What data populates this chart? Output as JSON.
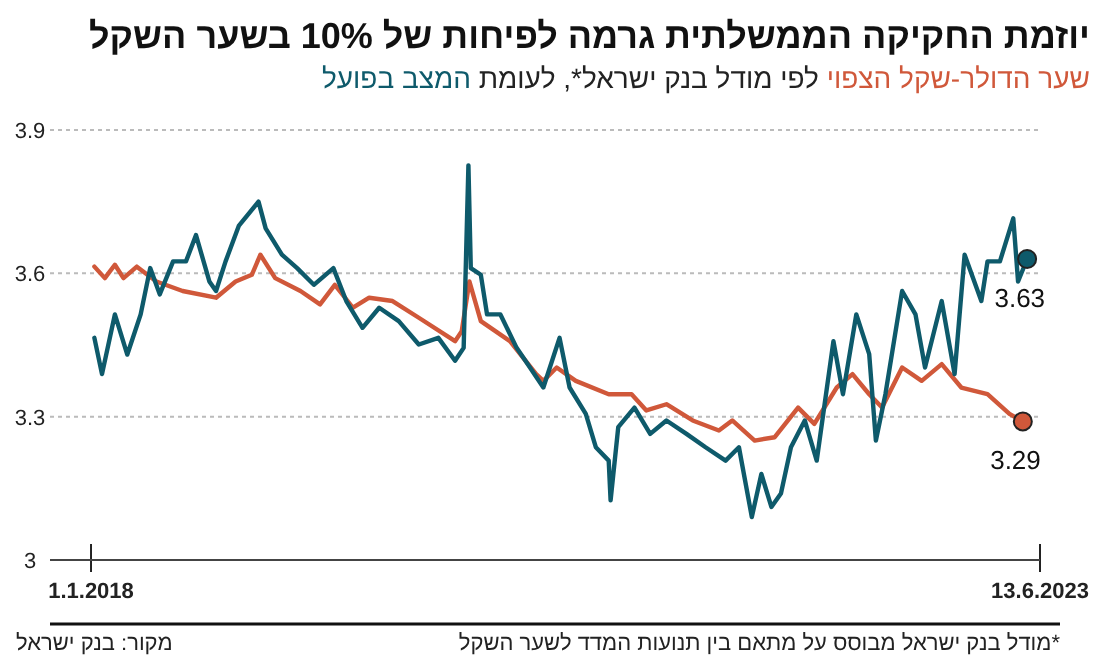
{
  "chart_data": {
    "type": "line",
    "title": "יוזמת החקיקה הממשלתית גרמה לפיחות של 10% בשער השקל",
    "subtitle": "לפי מודל בנק ישראל*, לעומת",
    "xlim": [
      "2017-10-07",
      "2023-06-13"
    ],
    "xticks": [
      {
        "value": "2018-01-01",
        "label": "1.1.2018"
      },
      {
        "value": "2023-06-13",
        "label": "13.6.2023"
      }
    ],
    "ylim": [
      3,
      3.9
    ],
    "yticks": [
      3,
      3.3,
      3.6,
      3.9
    ],
    "grid": "y",
    "line_style": "solid",
    "series": [
      {
        "name": "שער הדולר-שקל הצפוי",
        "color": "#d0583a",
        "x": [
          "2018-01-08",
          "2018-01-30",
          "2018-02-20",
          "2018-03-10",
          "2018-04-07",
          "2018-05-18",
          "2018-07-12",
          "2018-09-20",
          "2018-10-31",
          "2018-12-04",
          "2018-12-22",
          "2019-01-22",
          "2019-03-16",
          "2019-04-26",
          "2019-05-27",
          "2019-07-04",
          "2019-08-07",
          "2019-09-25",
          "2019-11-19",
          "2020-02-03",
          "2020-02-17",
          "2020-03-04",
          "2020-03-28",
          "2020-05-28",
          "2020-07-22",
          "2020-08-06",
          "2020-09-03",
          "2020-10-13",
          "2020-12-21",
          "2021-02-07",
          "2021-03-10",
          "2021-04-21",
          "2021-06-15",
          "2021-08-09",
          "2021-09-06",
          "2021-10-23",
          "2021-12-04",
          "2022-01-22",
          "2022-02-25",
          "2022-04-13",
          "2022-05-16",
          "2022-06-20",
          "2022-07-17",
          "2022-08-28",
          "2022-10-08",
          "2022-11-19",
          "2022-12-30",
          "2023-02-23",
          "2023-04-10",
          "2023-05-08"
        ],
        "values": [
          3.614,
          3.59,
          3.618,
          3.59,
          3.614,
          3.583,
          3.563,
          3.549,
          3.583,
          3.597,
          3.639,
          3.59,
          3.563,
          3.535,
          3.576,
          3.528,
          3.549,
          3.542,
          3.507,
          3.458,
          3.479,
          3.583,
          3.5,
          3.458,
          3.389,
          3.375,
          3.403,
          3.375,
          3.347,
          3.347,
          3.313,
          3.326,
          3.292,
          3.271,
          3.292,
          3.25,
          3.257,
          3.319,
          3.285,
          3.361,
          3.389,
          3.347,
          3.319,
          3.403,
          3.375,
          3.41,
          3.361,
          3.347,
          3.306,
          3.29
        ]
      },
      {
        "name": "המצב בפועל",
        "color": "#0e5a6b",
        "x": [
          "2018-01-08",
          "2018-01-24",
          "2018-02-20",
          "2018-03-18",
          "2018-04-15",
          "2018-05-05",
          "2018-05-25",
          "2018-06-22",
          "2018-07-19",
          "2018-08-09",
          "2018-09-06",
          "2018-09-20",
          "2018-10-10",
          "2018-11-07",
          "2018-12-18",
          "2019-01-02",
          "2019-02-05",
          "2019-03-09",
          "2019-04-13",
          "2019-05-24",
          "2019-06-20",
          "2019-07-24",
          "2019-08-28",
          "2019-10-08",
          "2019-11-19",
          "2019-12-30",
          "2020-02-03",
          "2020-02-21",
          "2020-03-02",
          "2020-03-07",
          "2020-03-28",
          "2020-04-10",
          "2020-05-08",
          "2020-06-11",
          "2020-07-09",
          "2020-08-06",
          "2020-09-09",
          "2020-09-30",
          "2020-11-03",
          "2020-11-24",
          "2020-12-21",
          "2020-12-25",
          "2021-01-10",
          "2021-02-13",
          "2021-03-18",
          "2021-04-21",
          "2021-06-02",
          "2021-07-12",
          "2021-08-23",
          "2021-09-20",
          "2021-10-17",
          "2021-11-06",
          "2021-11-27",
          "2021-12-17",
          "2022-01-07",
          "2022-02-05",
          "2022-03-02",
          "2022-04-06",
          "2022-04-26",
          "2022-05-24",
          "2022-06-20",
          "2022-07-04",
          "2022-07-24",
          "2022-08-28",
          "2022-09-25",
          "2022-10-15",
          "2022-11-19",
          "2022-12-16",
          "2023-01-06",
          "2023-02-10",
          "2023-02-23",
          "2023-03-21",
          "2023-04-18",
          "2023-04-28",
          "2023-05-17"
        ],
        "values": [
          3.465,
          3.389,
          3.514,
          3.43,
          3.514,
          3.611,
          3.556,
          3.625,
          3.625,
          3.68,
          3.583,
          3.563,
          3.625,
          3.7,
          3.75,
          3.694,
          3.639,
          3.611,
          3.576,
          3.611,
          3.542,
          3.486,
          3.528,
          3.5,
          3.451,
          3.465,
          3.417,
          3.444,
          3.826,
          3.611,
          3.597,
          3.514,
          3.514,
          3.444,
          3.403,
          3.361,
          3.465,
          3.361,
          3.306,
          3.236,
          3.208,
          3.125,
          3.278,
          3.319,
          3.264,
          3.292,
          3.264,
          3.236,
          3.208,
          3.236,
          3.09,
          3.18,
          3.111,
          3.139,
          3.236,
          3.292,
          3.208,
          3.458,
          3.347,
          3.514,
          3.431,
          3.25,
          3.347,
          3.563,
          3.514,
          3.403,
          3.542,
          3.389,
          3.639,
          3.542,
          3.625,
          3.625,
          3.715,
          3.583,
          3.63
        ]
      }
    ],
    "annotations": [
      {
        "text": "3.63",
        "x": "2023-05-17",
        "y": 3.63
      },
      {
        "text": "3.29",
        "x": "2023-05-08",
        "y": 3.29
      },
      "*מודל בנק ישראל מבוסס על מתאם בין תנועות המדד לשער השקל",
      "מקור: בנק ישראל"
    ]
  }
}
